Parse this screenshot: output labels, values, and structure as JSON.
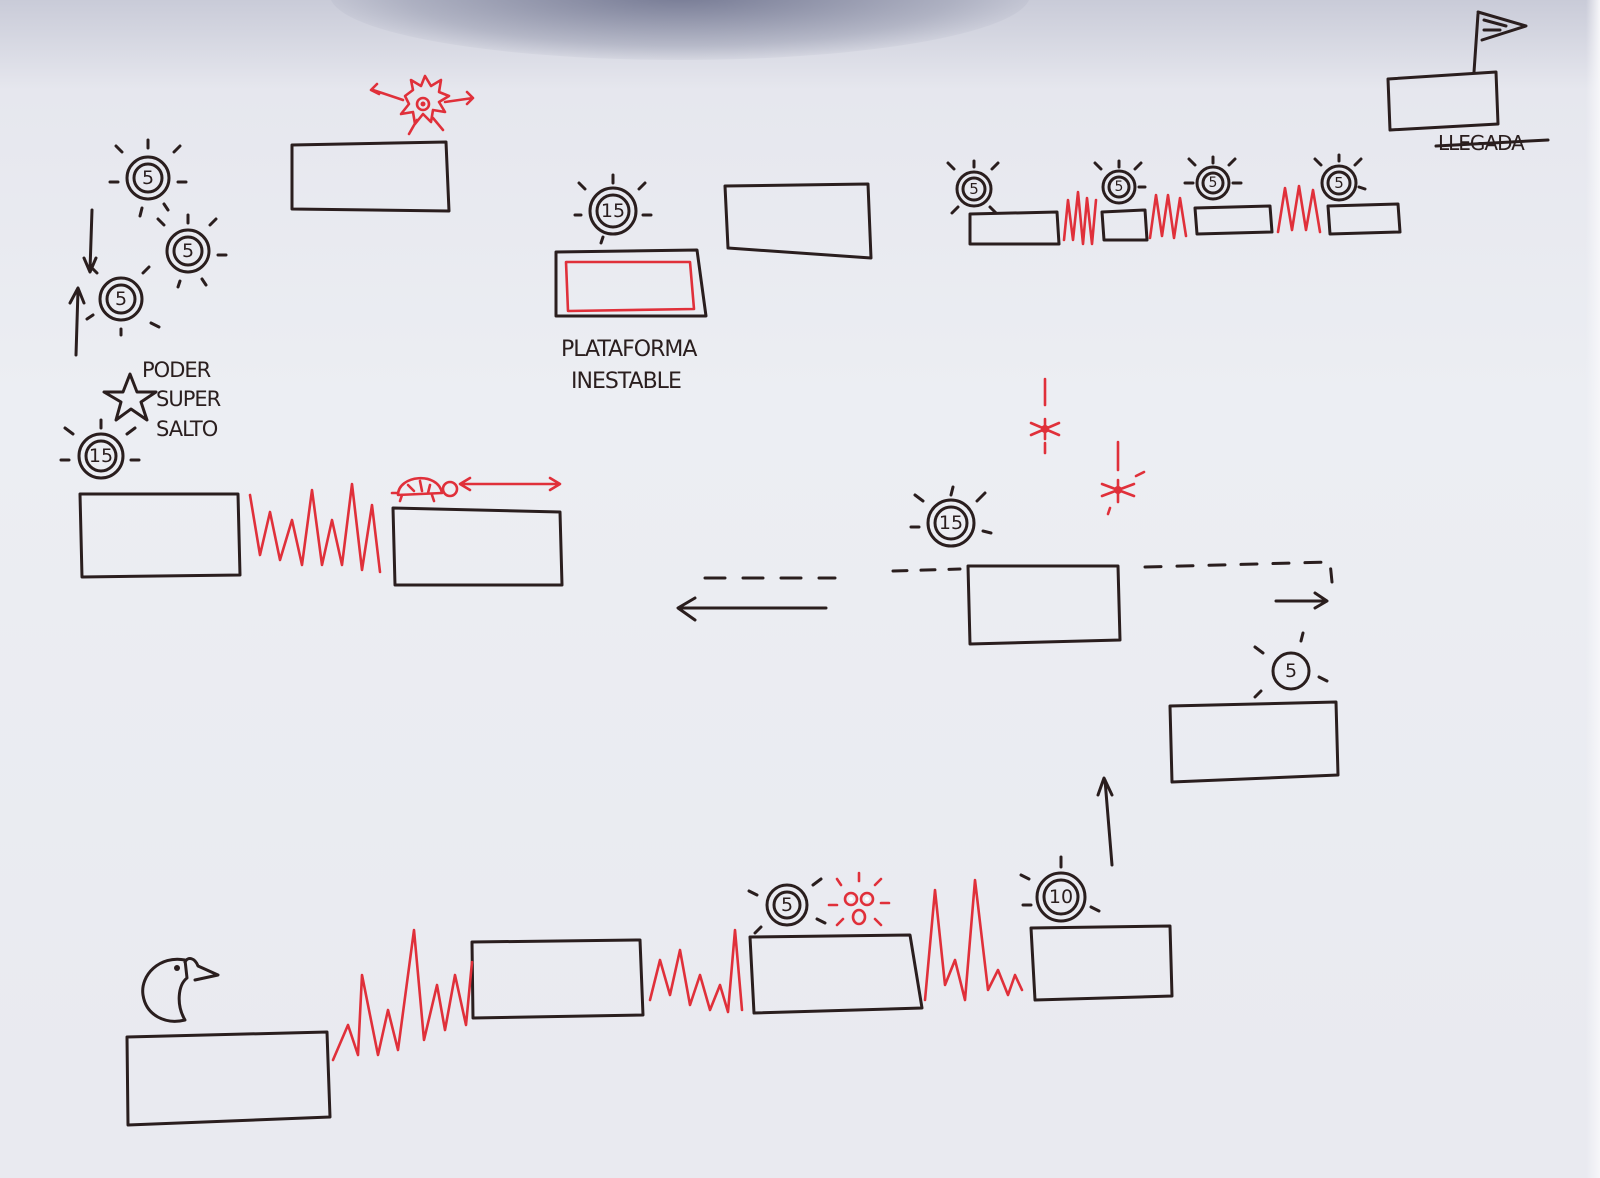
{
  "labels": {
    "unstable_platform_line1": "PLATAFORMA",
    "unstable_platform_line2": "INESTABLE",
    "power_line1": "PODER",
    "power_line2": "SUPER",
    "power_line3": "SALTO",
    "finish": "LLEGADA"
  },
  "coins": {
    "c1": "5",
    "c2": "5",
    "c3": "5",
    "c4": "15",
    "c5": "15",
    "c6": "15",
    "c7": "5",
    "c8": "5",
    "c9": "5",
    "c10": "5",
    "c11": "5",
    "c12": "5",
    "c13": "10"
  },
  "colors": {
    "ink": "#2a1e1e",
    "hazard": "#e0303a",
    "paper": "#eceef3"
  }
}
